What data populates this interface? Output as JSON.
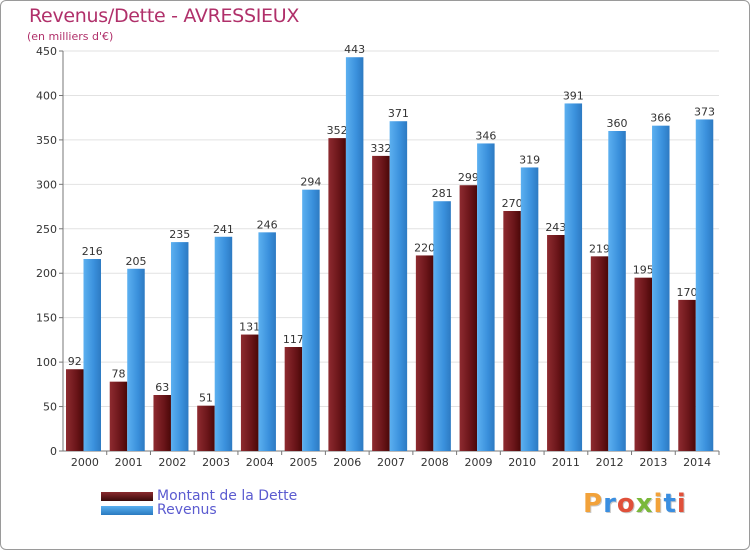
{
  "chart_data": {
    "type": "bar",
    "title": "Revenus/Dette - AVRESSIEUX",
    "subtitle": "(en milliers d'€)",
    "categories": [
      "2000",
      "2001",
      "2002",
      "2003",
      "2004",
      "2005",
      "2006",
      "2007",
      "2008",
      "2009",
      "2010",
      "2011",
      "2012",
      "2013",
      "2014"
    ],
    "series": [
      {
        "name": "Montant de la Dette",
        "color": "#7a1f22",
        "values": [
          92,
          78,
          63,
          51,
          131,
          117,
          352,
          332,
          220,
          299,
          270,
          243,
          219,
          195,
          170
        ]
      },
      {
        "name": "Revenus",
        "color": "#3a93dd",
        "values": [
          216,
          205,
          235,
          241,
          246,
          294,
          443,
          371,
          281,
          346,
          319,
          391,
          360,
          366,
          373
        ]
      }
    ],
    "yticks": [
      0,
      50,
      100,
      150,
      200,
      250,
      300,
      350,
      400,
      450
    ],
    "ylim": [
      0,
      450
    ],
    "grid": true,
    "legend_position": "bottom-left"
  },
  "logo": {
    "letters": [
      "P",
      "r",
      "o",
      "x",
      "i",
      "t",
      "i"
    ],
    "colors": [
      "#f2a23a",
      "#3a8ee0",
      "#e0503a",
      "#7ab83a",
      "#f2a23a",
      "#3a8ee0",
      "#e0503a"
    ]
  }
}
